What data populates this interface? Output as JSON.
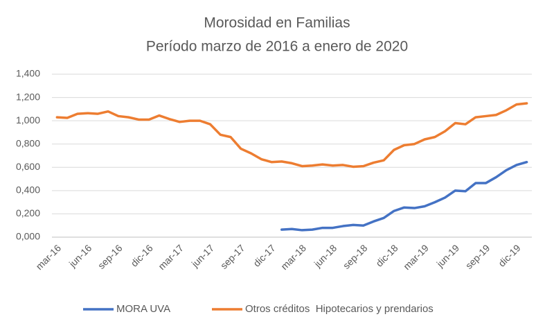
{
  "chart_data": {
    "type": "line",
    "title": "Morosidad en Familias",
    "subtitle": "Período marzo de 2016 a enero de 2020",
    "categories": [
      "mar-16",
      null,
      null,
      "jun-16",
      null,
      null,
      "sep-16",
      null,
      null,
      "dic-16",
      null,
      null,
      "mar-17",
      null,
      null,
      "jun-17",
      null,
      null,
      "sep-17",
      null,
      null,
      "dic-17",
      null,
      null,
      "mar-18",
      null,
      null,
      "jun-18",
      null,
      null,
      "sep-18",
      null,
      null,
      "dic-18",
      null,
      null,
      "mar-19",
      null,
      null,
      "jun-19",
      null,
      null,
      "sep-19",
      null,
      null,
      "dic-19",
      null
    ],
    "series": [
      {
        "name": "MORA UVA",
        "color": "#4472c4",
        "values": [
          null,
          null,
          null,
          null,
          null,
          null,
          null,
          null,
          null,
          null,
          null,
          null,
          null,
          null,
          null,
          null,
          null,
          null,
          null,
          null,
          null,
          null,
          0.065,
          0.07,
          0.06,
          0.065,
          0.08,
          0.08,
          0.095,
          0.105,
          0.1,
          0.135,
          0.165,
          0.225,
          0.255,
          0.25,
          0.265,
          0.3,
          0.34,
          0.4,
          0.395,
          0.465,
          0.465,
          0.515,
          0.575,
          0.62,
          0.645
        ]
      },
      {
        "name": "Otros créditos  Hipotecarios y prendarios",
        "color": "#ed7d31",
        "values": [
          1.03,
          1.025,
          1.06,
          1.065,
          1.06,
          1.08,
          1.04,
          1.03,
          1.01,
          1.01,
          1.045,
          1.015,
          0.99,
          1.0,
          1.0,
          0.97,
          0.88,
          0.86,
          0.76,
          0.72,
          0.67,
          0.645,
          0.65,
          0.635,
          0.61,
          0.615,
          0.625,
          0.615,
          0.62,
          0.605,
          0.61,
          0.64,
          0.66,
          0.75,
          0.79,
          0.8,
          0.84,
          0.86,
          0.91,
          0.98,
          0.97,
          1.03,
          1.04,
          1.05,
          1.09,
          1.14,
          1.15
        ]
      }
    ],
    "ylim": [
      0,
      1.4
    ],
    "yticks": [
      {
        "value": 0,
        "label": "0,000"
      },
      {
        "value": 0.2,
        "label": "0,200"
      },
      {
        "value": 0.4,
        "label": "0,400"
      },
      {
        "value": 0.6,
        "label": "0,600"
      },
      {
        "value": 0.8,
        "label": "0,800"
      },
      {
        "value": 1.0,
        "label": "1,000"
      },
      {
        "value": 1.2,
        "label": "1,200"
      },
      {
        "value": 1.4,
        "label": "1,400"
      }
    ],
    "grid": true,
    "legend": "bottom"
  }
}
